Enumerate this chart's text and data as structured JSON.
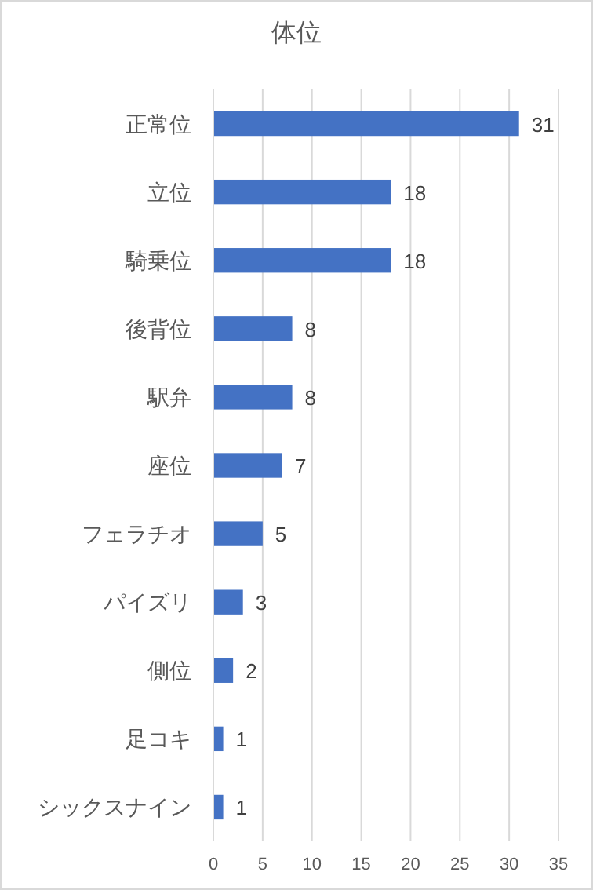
{
  "chart_data": {
    "type": "bar",
    "title": "体位",
    "orientation": "horizontal",
    "categories": [
      "正常位",
      "立位",
      "騎乗位",
      "後背位",
      "駅弁",
      "座位",
      "フェラチオ",
      "パイズリ",
      "側位",
      "足コキ",
      "シックスナイン"
    ],
    "values": [
      31,
      18,
      18,
      8,
      8,
      7,
      5,
      3,
      2,
      1,
      1
    ],
    "color": "#4472c4",
    "xlim": [
      0,
      35
    ],
    "xticks": [
      0,
      5,
      10,
      15,
      20,
      25,
      30,
      35
    ],
    "grid": "x",
    "data_labels": true
  }
}
